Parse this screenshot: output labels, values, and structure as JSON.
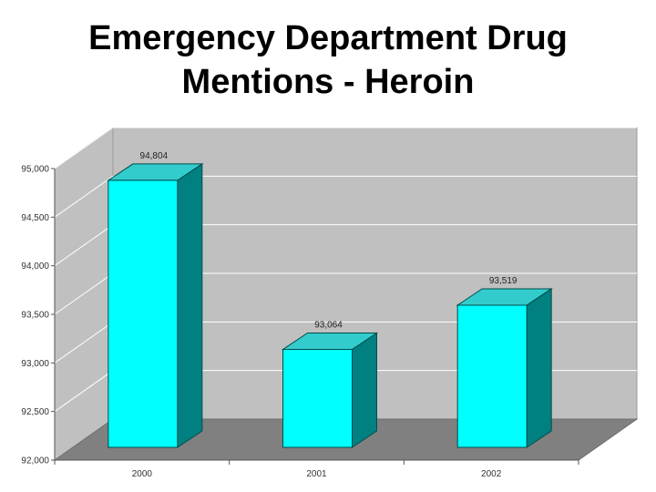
{
  "slide": {
    "title_line1": "Emergency Department Drug",
    "title_line2": "Mentions - Heroin"
  },
  "colors": {
    "bar_front": "#00ffff",
    "bar_side": "#008080",
    "bar_top": "#33cccc",
    "wall": "#c0c0c0",
    "floor": "#808080"
  },
  "chart_data": {
    "type": "bar",
    "title": "Emergency Department Drug Mentions - Heroin",
    "categories": [
      "2000",
      "2001",
      "2002"
    ],
    "values": [
      94804,
      93064,
      93519
    ],
    "data_labels": [
      "94,804",
      "93,064",
      "93,519"
    ],
    "ylim": [
      92000,
      95000
    ],
    "yticks": [
      92000,
      92500,
      93000,
      93500,
      94000,
      94500,
      95000
    ],
    "ytick_labels": [
      "92,000",
      "92,500",
      "93,000",
      "93,500",
      "94,000",
      "94,500",
      "95,000"
    ],
    "grid": true,
    "style": "3d"
  }
}
